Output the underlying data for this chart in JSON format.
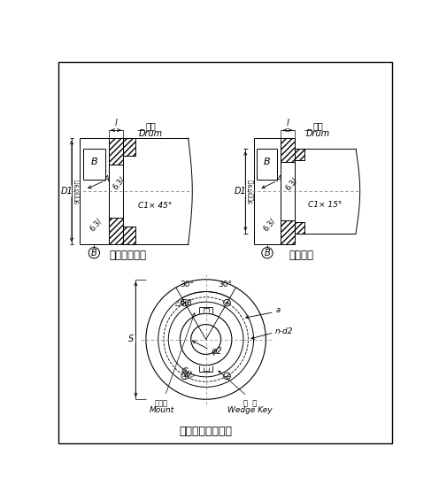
{
  "title": "法兰螺栓孔的布置",
  "subtitle1": "中间法兰联接",
  "subtitle2": "直接联接",
  "label_B": "B",
  "label_grade": "9级（IT9）",
  "label_D1": "D1",
  "label_l": "l",
  "label_6p3a": "6.3/",
  "label_6p3b": "6.3/",
  "label_c1x45": "C1× 45°",
  "label_c1x15": "C1× 15°",
  "label_phi2": "φ2",
  "label_nd2": "n-d2",
  "label_S": "S",
  "label_mount_cn": "固定块",
  "label_mount_en": "Mount",
  "label_wedge_cn": "楔  键",
  "label_wedge_en": "Wedge Key",
  "label_30a": "30°",
  "label_30b": "30°",
  "label_6p3_tri": "6.3",
  "label_6p3_tri2": "6.3/",
  "label_A": "A",
  "label_drum_cn": "卷筒",
  "label_drum_en": "Drum",
  "bg_color": "#ffffff",
  "line_color": "#000000"
}
